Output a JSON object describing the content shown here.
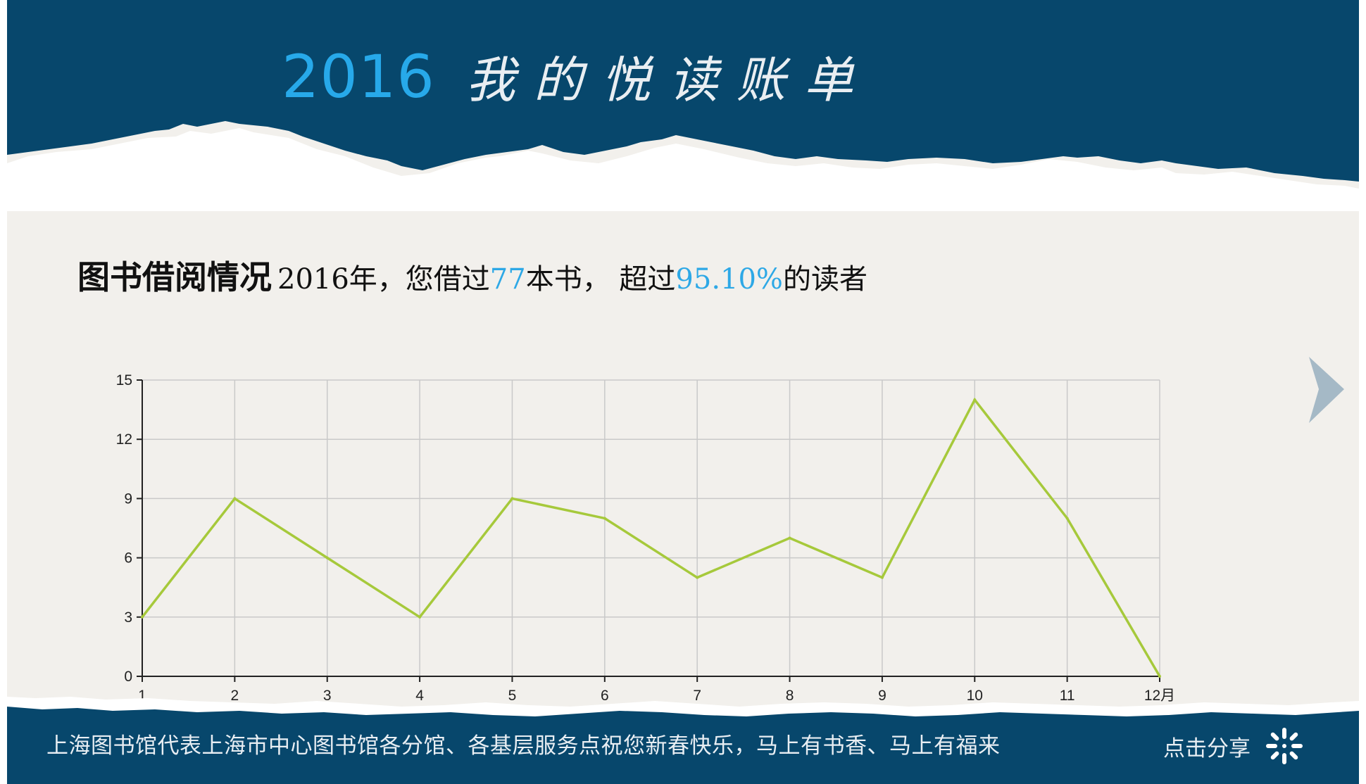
{
  "header": {
    "year": "2016",
    "title": "我的悦读账单"
  },
  "summary": {
    "heading": "图书借阅情况",
    "prefix": "2016年，您借过",
    "books_count": "77",
    "mid": "本书， 超过",
    "percent": "95.10%",
    "suffix": "的读者"
  },
  "chart_data": {
    "type": "line",
    "categories": [
      "1",
      "2",
      "3",
      "4",
      "5",
      "6",
      "7",
      "8",
      "9",
      "10",
      "11",
      "12月"
    ],
    "series": [
      {
        "values": [
          3,
          9,
          6,
          3,
          9,
          8,
          5,
          7,
          5,
          14,
          8,
          0
        ]
      }
    ],
    "yticks": [
      0,
      3,
      6,
      9,
      12,
      15
    ],
    "ylim": [
      0,
      15
    ],
    "grid": true,
    "line_color": "#a6c93b",
    "xlabel": "",
    "ylabel": "",
    "title": ""
  },
  "footer": {
    "message": "上海图书馆代表上海市中心图书馆各分馆、各基层服务点祝您新春快乐，马上有书香、马上有福来",
    "share_label": "点击分享"
  },
  "colors": {
    "band": "#07476c",
    "paper": "#f2f0ec",
    "year_blue": "#27a9ea",
    "highlight": "#2da8e6"
  },
  "icons": {
    "next": "chevron-right-icon",
    "share": "share-burst-icon"
  }
}
